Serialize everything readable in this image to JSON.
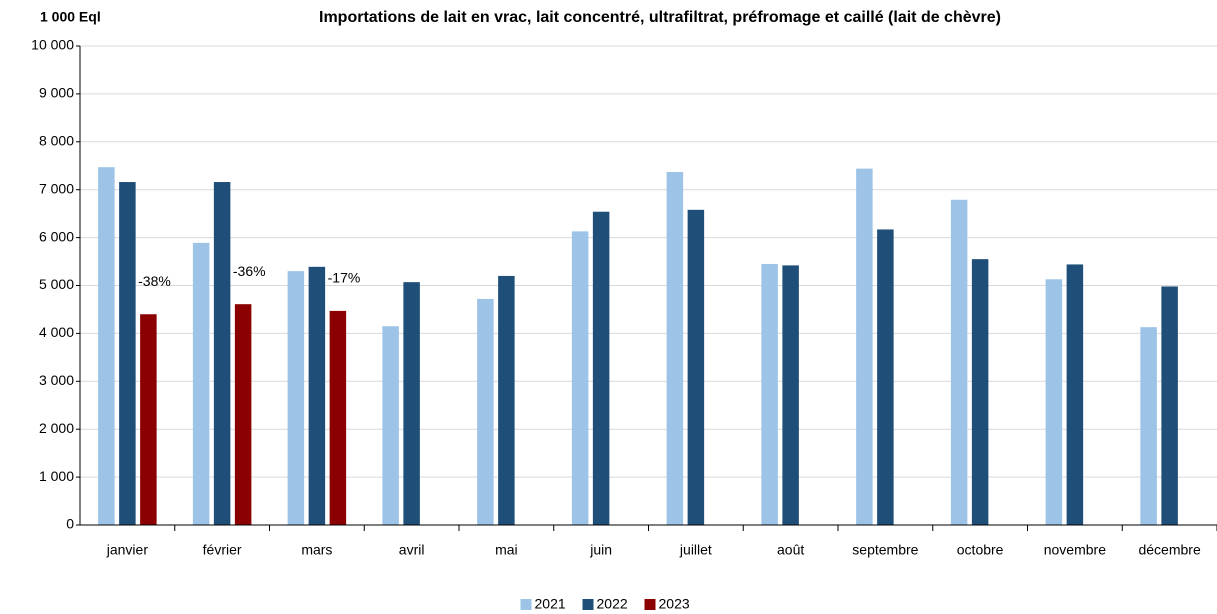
{
  "chart_data": {
    "type": "bar",
    "title": "Importations de lait en vrac, lait concentré, ultrafiltrat, préfromage et caillé (lait de chèvre)",
    "y_label": "1 000 Eql",
    "categories": [
      "janvier",
      "février",
      "mars",
      "avril",
      "mai",
      "juin",
      "juillet",
      "août",
      "septembre",
      "octobre",
      "novembre",
      "décembre"
    ],
    "series": [
      {
        "name": "2021",
        "color": "#9dc3e6",
        "values": [
          7470,
          5890,
          5300,
          4150,
          4720,
          6130,
          7370,
          5450,
          7440,
          6790,
          5130,
          4130
        ]
      },
      {
        "name": "2022",
        "color": "#1f4e79",
        "values": [
          7160,
          7160,
          5390,
          5070,
          5200,
          6540,
          6580,
          5420,
          6170,
          5550,
          5440,
          4980
        ]
      },
      {
        "name": "2023",
        "color": "#8b0000",
        "values": [
          4400,
          4610,
          4470,
          null,
          null,
          null,
          null,
          null,
          null,
          null,
          null,
          null
        ]
      }
    ],
    "annotations": [
      {
        "category": "janvier",
        "text": "-38%"
      },
      {
        "category": "février",
        "text": "-36%"
      },
      {
        "category": "mars",
        "text": "-17%"
      }
    ],
    "ylim": [
      0,
      10000
    ],
    "yticks": [
      0,
      {
        "value": 1000,
        "label": "1 000"
      },
      {
        "value": 2000,
        "label": "2 000"
      },
      {
        "value": 3000,
        "label": "3 000"
      },
      {
        "value": 4000,
        "label": "4 000"
      },
      {
        "value": 5000,
        "label": "5 000"
      },
      {
        "value": 6000,
        "label": "6 000"
      },
      {
        "value": 7000,
        "label": "7 000"
      },
      {
        "value": 8000,
        "label": "8 000"
      },
      {
        "value": 9000,
        "label": "9 000"
      },
      {
        "value": 10000,
        "label": "10 000"
      }
    ],
    "grid": true,
    "legend": "bottom"
  }
}
